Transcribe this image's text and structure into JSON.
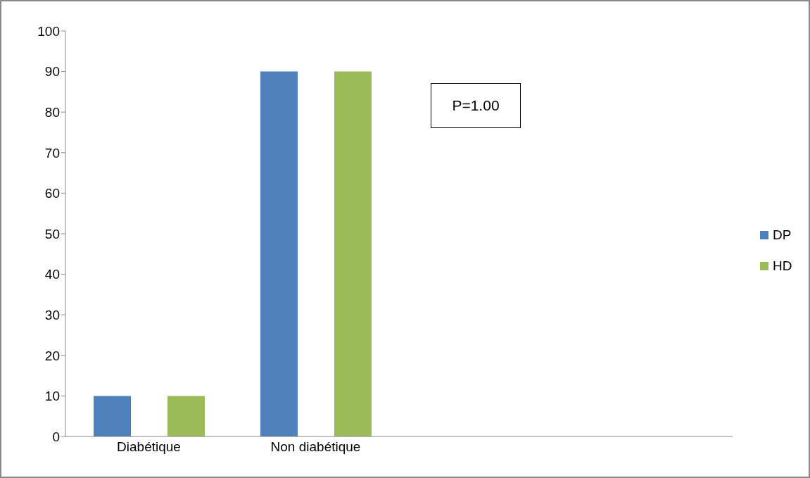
{
  "chart_data": {
    "type": "bar",
    "categories": [
      "Diabétique",
      "Non diabétique",
      null,
      null
    ],
    "series": [
      {
        "name": "DP",
        "color": "#4f81bd",
        "values": [
          10,
          90,
          null,
          null
        ]
      },
      {
        "name": "HD",
        "color": "#9bbb59",
        "values": [
          10,
          90,
          null,
          null
        ]
      }
    ],
    "ylim": [
      0,
      100
    ],
    "yticks": [
      0,
      10,
      20,
      30,
      40,
      50,
      60,
      70,
      80,
      90,
      100
    ],
    "legend": "right",
    "annotations": [
      "P=1.00"
    ]
  }
}
